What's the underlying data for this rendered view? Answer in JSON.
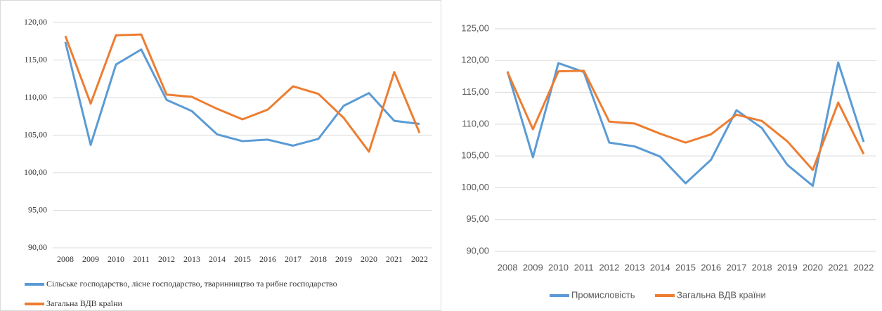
{
  "chart_data": [
    {
      "type": "line",
      "categories": [
        "2008",
        "2009",
        "2010",
        "2011",
        "2012",
        "2013",
        "2014",
        "2015",
        "2016",
        "2017",
        "2018",
        "2019",
        "2020",
        "2021",
        "2022"
      ],
      "series": [
        {
          "name": "Сільське господарство, лісне господарство, тваринництво та рибне господарство",
          "color": "#5b9bd5",
          "values": [
            117.4,
            103.7,
            114.4,
            116.4,
            109.7,
            108.2,
            105.1,
            104.2,
            104.4,
            103.6,
            104.5,
            108.9,
            110.6,
            106.9,
            106.5
          ]
        },
        {
          "name": "Загальна ВДВ країни",
          "color": "#ed7d31",
          "values": [
            118.2,
            109.2,
            118.3,
            118.4,
            110.4,
            110.1,
            108.5,
            107.1,
            108.4,
            111.5,
            110.5,
            107.3,
            102.8,
            113.4,
            105.3
          ]
        }
      ],
      "ylim": [
        90,
        120
      ],
      "yticks": [
        {
          "value": 90,
          "label": "90,00"
        },
        {
          "value": 95,
          "label": "95,00"
        },
        {
          "value": 100,
          "label": "100,00"
        },
        {
          "value": 105,
          "label": "105,00"
        },
        {
          "value": 110,
          "label": "110,00"
        },
        {
          "value": 115,
          "label": "115,00"
        },
        {
          "value": 120,
          "label": "120,00"
        }
      ],
      "grid": true,
      "legend": "bottom"
    },
    {
      "type": "line",
      "categories": [
        "2008",
        "2009",
        "2010",
        "2011",
        "2012",
        "2013",
        "2014",
        "2015",
        "2016",
        "2017",
        "2018",
        "2019",
        "2020",
        "2021",
        "2022"
      ],
      "series": [
        {
          "name": "Промисловість",
          "color": "#5b9bd5",
          "values": [
            118.3,
            104.8,
            119.6,
            118.2,
            107.1,
            106.5,
            104.9,
            100.7,
            104.4,
            112.2,
            109.4,
            103.6,
            100.3,
            119.7,
            107.2
          ]
        },
        {
          "name": "Загальна ВДВ країни",
          "color": "#ed7d31",
          "values": [
            118.2,
            109.2,
            118.3,
            118.4,
            110.4,
            110.1,
            108.5,
            107.1,
            108.4,
            111.5,
            110.5,
            107.3,
            102.8,
            113.4,
            105.3
          ]
        }
      ],
      "ylim": [
        90,
        125
      ],
      "yticks": [
        {
          "value": 90,
          "label": "90,00"
        },
        {
          "value": 95,
          "label": "95,00"
        },
        {
          "value": 100,
          "label": "100,00"
        },
        {
          "value": 105,
          "label": "105,00"
        },
        {
          "value": 110,
          "label": "110,00"
        },
        {
          "value": 115,
          "label": "115,00"
        },
        {
          "value": 120,
          "label": "120,00"
        },
        {
          "value": 125,
          "label": "125,00"
        }
      ],
      "grid": true,
      "legend": "bottom"
    }
  ]
}
